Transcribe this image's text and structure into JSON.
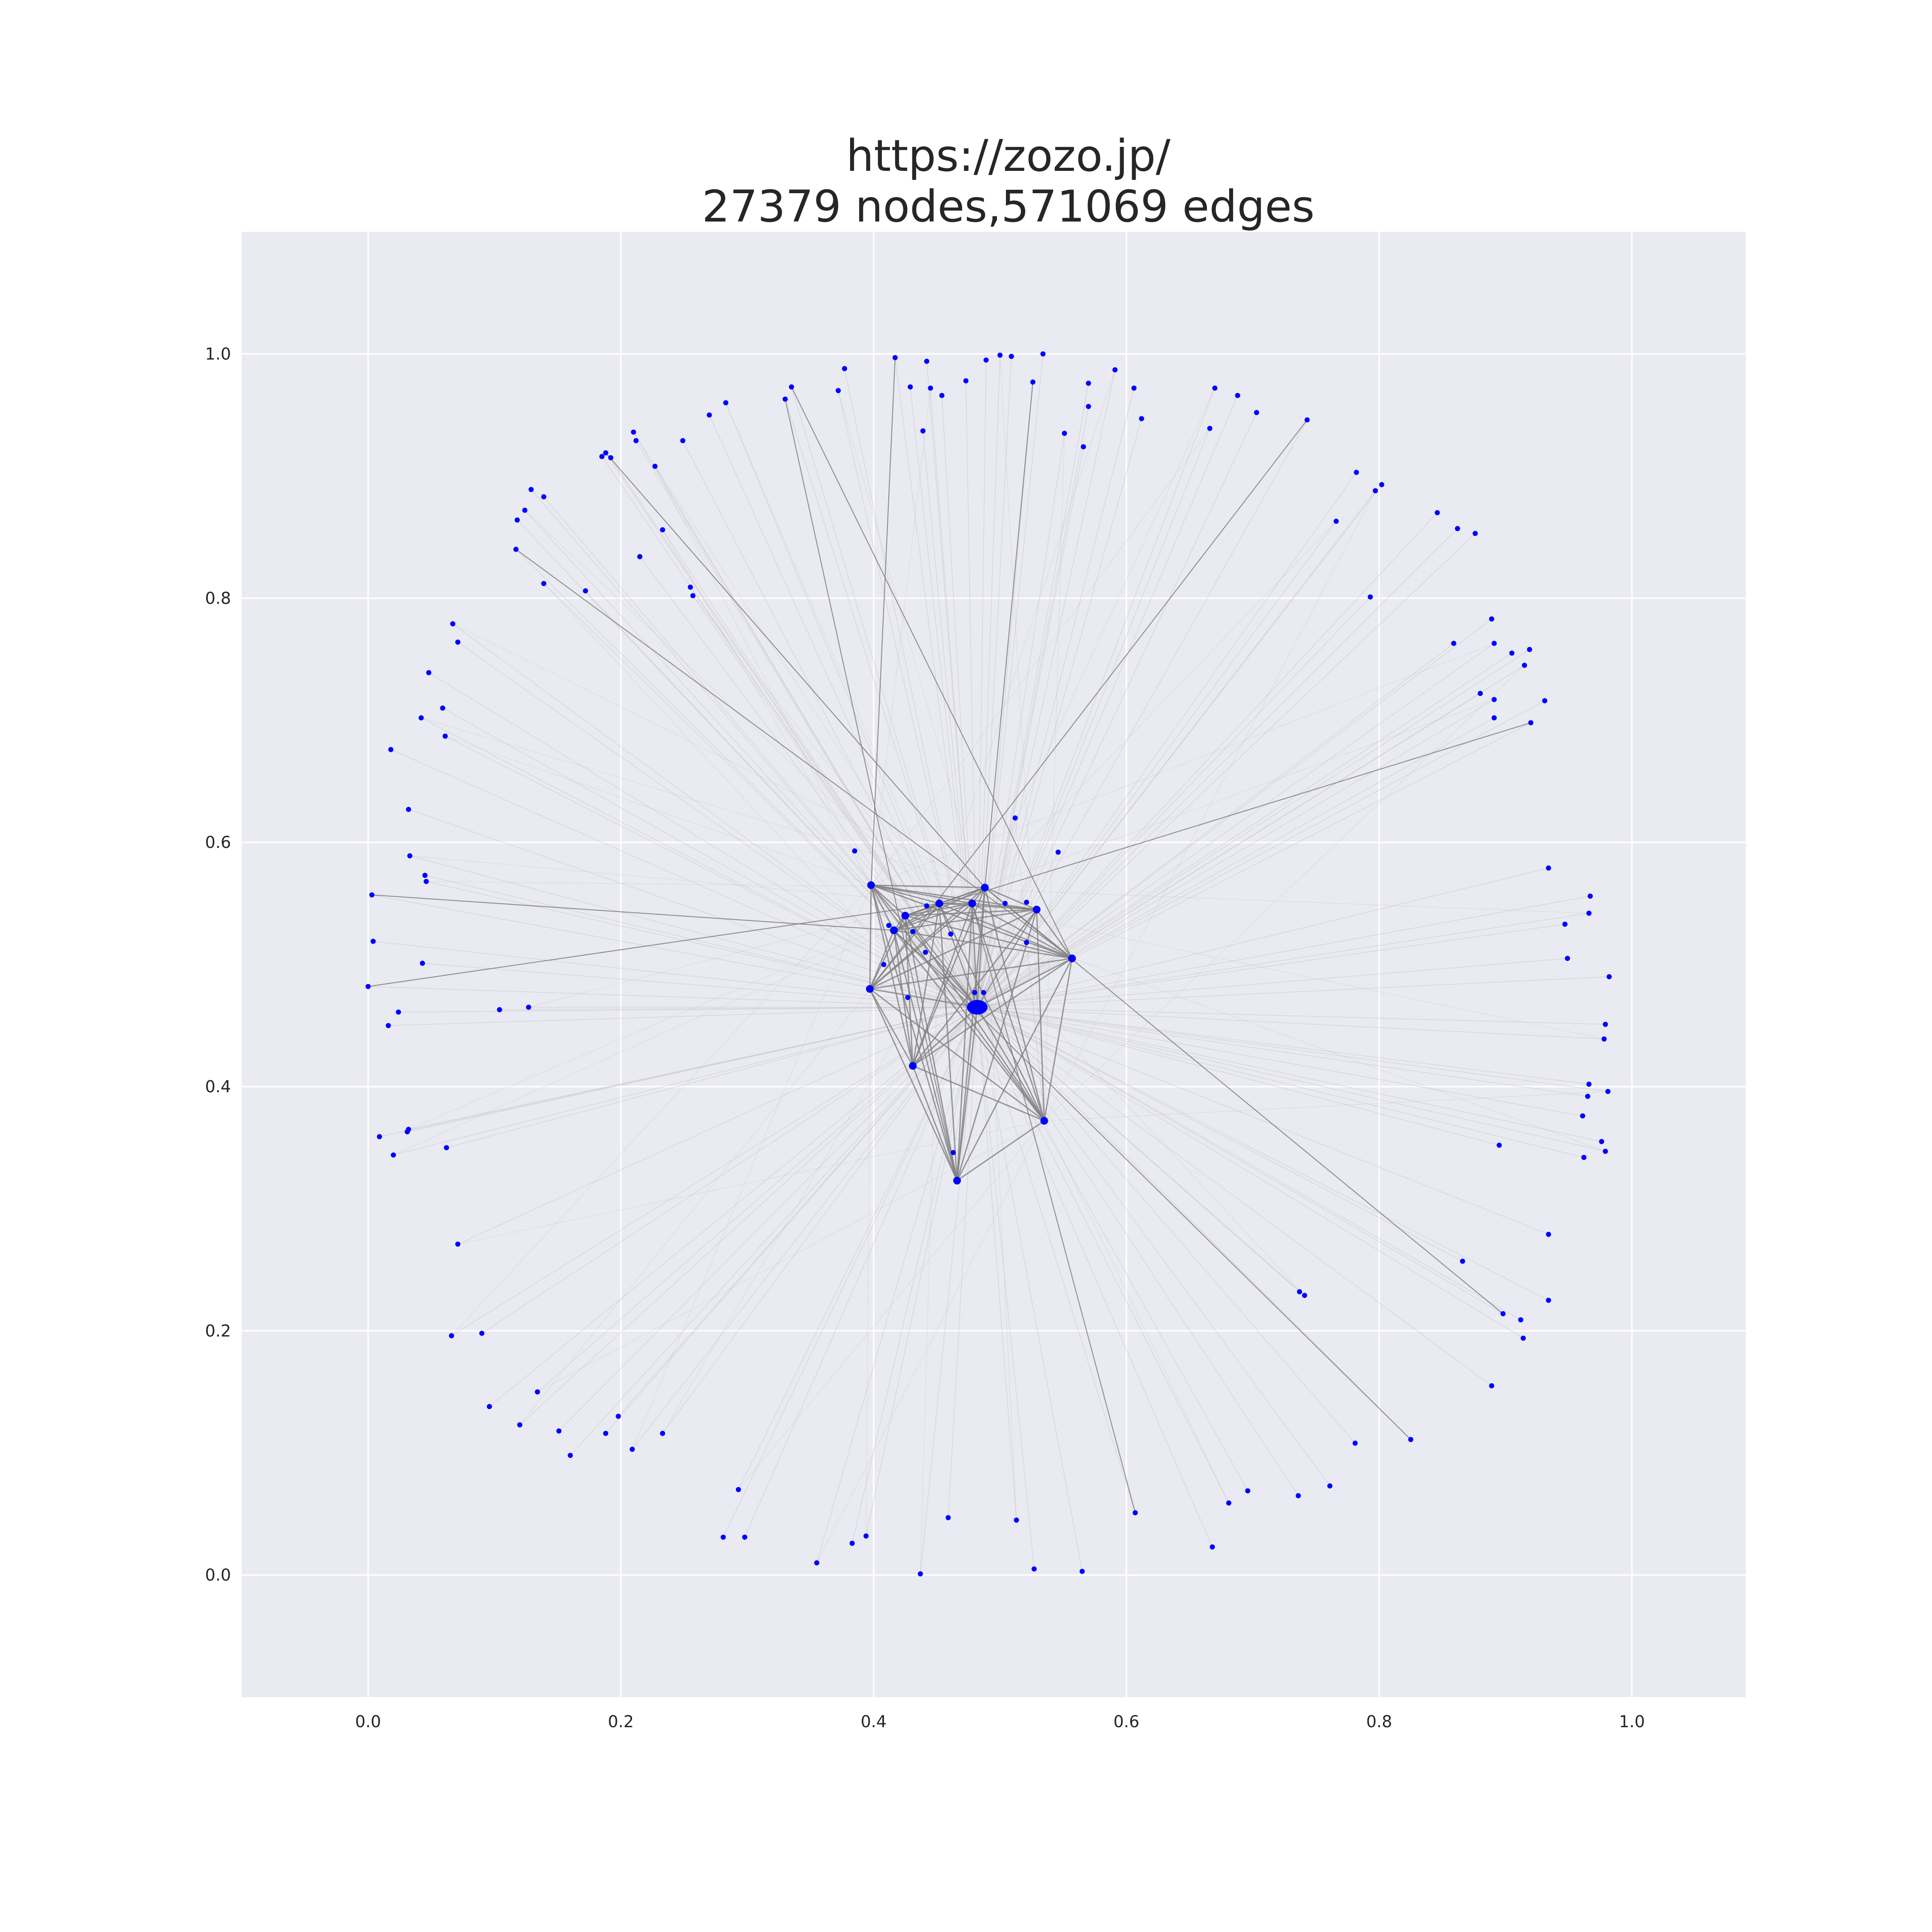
{
  "title": {
    "line1": "https://zozo.jp/",
    "line2": "27379 nodes,571069 edges"
  },
  "colors": {
    "background": "#EAEAF2",
    "grid": "#FFFFFF",
    "node": "#0000FF",
    "edge": "#808080"
  },
  "chart_data": {
    "type": "network",
    "title": "https://zozo.jp/\n27379 nodes,571069 edges",
    "xlim": [
      -0.1,
      1.09
    ],
    "ylim": [
      -0.1,
      1.1
    ],
    "xticks": [
      "0.0",
      "0.2",
      "0.4",
      "0.6",
      "0.8",
      "1.0"
    ],
    "yticks": [
      "0.0",
      "0.2",
      "0.4",
      "0.6",
      "0.8",
      "1.0"
    ],
    "grid": true,
    "hubs": [
      [
        0.482,
        0.465
      ],
      [
        0.398,
        0.565
      ],
      [
        0.397,
        0.48
      ],
      [
        0.557,
        0.505
      ],
      [
        0.535,
        0.372
      ],
      [
        0.466,
        0.323
      ],
      [
        0.431,
        0.417
      ],
      [
        0.452,
        0.55
      ],
      [
        0.478,
        0.55
      ],
      [
        0.529,
        0.545
      ],
      [
        0.488,
        0.563
      ],
      [
        0.416,
        0.528
      ],
      [
        0.425,
        0.54
      ]
    ],
    "nodes": [
      [
        0.417,
        0.997
      ],
      [
        0.442,
        0.994
      ],
      [
        0.489,
        0.995
      ],
      [
        0.5,
        0.999
      ],
      [
        0.509,
        0.998
      ],
      [
        0.534,
        1.0
      ],
      [
        0.591,
        0.987
      ],
      [
        0.377,
        0.988
      ],
      [
        0.57,
        0.976
      ],
      [
        0.526,
        0.977
      ],
      [
        0.473,
        0.978
      ],
      [
        0.429,
        0.973
      ],
      [
        0.445,
        0.972
      ],
      [
        0.454,
        0.966
      ],
      [
        0.335,
        0.973
      ],
      [
        0.372,
        0.97
      ],
      [
        0.33,
        0.963
      ],
      [
        0.606,
        0.972
      ],
      [
        0.283,
        0.96
      ],
      [
        0.27,
        0.95
      ],
      [
        0.612,
        0.947
      ],
      [
        0.67,
        0.972
      ],
      [
        0.688,
        0.966
      ],
      [
        0.703,
        0.952
      ],
      [
        0.666,
        0.939
      ],
      [
        0.743,
        0.946
      ],
      [
        0.57,
        0.957
      ],
      [
        0.551,
        0.935
      ],
      [
        0.566,
        0.924
      ],
      [
        0.439,
        0.937
      ],
      [
        0.21,
        0.936
      ],
      [
        0.212,
        0.929
      ],
      [
        0.249,
        0.929
      ],
      [
        0.188,
        0.919
      ],
      [
        0.185,
        0.916
      ],
      [
        0.192,
        0.915
      ],
      [
        0.227,
        0.908
      ],
      [
        0.782,
        0.903
      ],
      [
        0.802,
        0.893
      ],
      [
        0.797,
        0.888
      ],
      [
        0.129,
        0.889
      ],
      [
        0.139,
        0.883
      ],
      [
        0.124,
        0.872
      ],
      [
        0.118,
        0.864
      ],
      [
        0.846,
        0.87
      ],
      [
        0.766,
        0.863
      ],
      [
        0.862,
        0.857
      ],
      [
        0.876,
        0.853
      ],
      [
        0.233,
        0.856
      ],
      [
        0.215,
        0.834
      ],
      [
        0.117,
        0.84
      ],
      [
        0.139,
        0.812
      ],
      [
        0.172,
        0.806
      ],
      [
        0.255,
        0.809
      ],
      [
        0.257,
        0.802
      ],
      [
        0.793,
        0.801
      ],
      [
        0.889,
        0.783
      ],
      [
        0.067,
        0.779
      ],
      [
        0.071,
        0.764
      ],
      [
        0.859,
        0.763
      ],
      [
        0.891,
        0.763
      ],
      [
        0.919,
        0.758
      ],
      [
        0.905,
        0.755
      ],
      [
        0.915,
        0.745
      ],
      [
        0.048,
        0.739
      ],
      [
        0.88,
        0.722
      ],
      [
        0.891,
        0.717
      ],
      [
        0.931,
        0.716
      ],
      [
        0.059,
        0.71
      ],
      [
        0.042,
        0.702
      ],
      [
        0.891,
        0.702
      ],
      [
        0.92,
        0.698
      ],
      [
        0.061,
        0.687
      ],
      [
        0.018,
        0.676
      ],
      [
        0.032,
        0.627
      ],
      [
        0.512,
        0.62
      ],
      [
        0.385,
        0.593
      ],
      [
        0.546,
        0.592
      ],
      [
        0.033,
        0.589
      ],
      [
        0.934,
        0.579
      ],
      [
        0.045,
        0.573
      ],
      [
        0.046,
        0.568
      ],
      [
        0.003,
        0.557
      ],
      [
        0.967,
        0.556
      ],
      [
        0.966,
        0.542
      ],
      [
        0.947,
        0.533
      ],
      [
        0.004,
        0.519
      ],
      [
        0.521,
        0.518
      ],
      [
        0.949,
        0.505
      ],
      [
        0.043,
        0.501
      ],
      [
        0.408,
        0.5
      ],
      [
        0.982,
        0.49
      ],
      [
        0.441,
        0.51
      ],
      [
        0.412,
        0.532
      ],
      [
        0.431,
        0.527
      ],
      [
        0.461,
        0.525
      ],
      [
        0.442,
        0.548
      ],
      [
        0.504,
        0.55
      ],
      [
        0.521,
        0.551
      ],
      [
        0.427,
        0.473
      ],
      [
        0.48,
        0.477
      ],
      [
        0.487,
        0.477
      ],
      [
        0.0,
        0.482
      ],
      [
        0.024,
        0.461
      ],
      [
        0.104,
        0.463
      ],
      [
        0.127,
        0.465
      ],
      [
        0.016,
        0.45
      ],
      [
        0.979,
        0.451
      ],
      [
        0.978,
        0.439
      ],
      [
        0.966,
        0.402
      ],
      [
        0.965,
        0.392
      ],
      [
        0.981,
        0.396
      ],
      [
        0.961,
        0.376
      ],
      [
        0.009,
        0.359
      ],
      [
        0.032,
        0.365
      ],
      [
        0.031,
        0.363
      ],
      [
        0.062,
        0.35
      ],
      [
        0.02,
        0.344
      ],
      [
        0.895,
        0.352
      ],
      [
        0.976,
        0.355
      ],
      [
        0.979,
        0.347
      ],
      [
        0.962,
        0.342
      ],
      [
        0.463,
        0.346
      ],
      [
        0.071,
        0.271
      ],
      [
        0.934,
        0.279
      ],
      [
        0.866,
        0.257
      ],
      [
        0.741,
        0.229
      ],
      [
        0.737,
        0.232
      ],
      [
        0.934,
        0.225
      ],
      [
        0.898,
        0.214
      ],
      [
        0.912,
        0.209
      ],
      [
        0.914,
        0.194
      ],
      [
        0.066,
        0.196
      ],
      [
        0.09,
        0.198
      ],
      [
        0.889,
        0.155
      ],
      [
        0.134,
        0.15
      ],
      [
        0.096,
        0.138
      ],
      [
        0.198,
        0.13
      ],
      [
        0.12,
        0.123
      ],
      [
        0.151,
        0.118
      ],
      [
        0.188,
        0.116
      ],
      [
        0.233,
        0.116
      ],
      [
        0.825,
        0.111
      ],
      [
        0.781,
        0.108
      ],
      [
        0.209,
        0.103
      ],
      [
        0.16,
        0.098
      ],
      [
        0.761,
        0.073
      ],
      [
        0.293,
        0.07
      ],
      [
        0.696,
        0.069
      ],
      [
        0.736,
        0.065
      ],
      [
        0.681,
        0.059
      ],
      [
        0.607,
        0.051
      ],
      [
        0.459,
        0.047
      ],
      [
        0.513,
        0.045
      ],
      [
        0.281,
        0.031
      ],
      [
        0.298,
        0.031
      ],
      [
        0.394,
        0.032
      ],
      [
        0.383,
        0.026
      ],
      [
        0.668,
        0.023
      ],
      [
        0.355,
        0.01
      ],
      [
        0.527,
        0.005
      ],
      [
        0.565,
        0.003
      ],
      [
        0.437,
        0.001
      ]
    ]
  }
}
